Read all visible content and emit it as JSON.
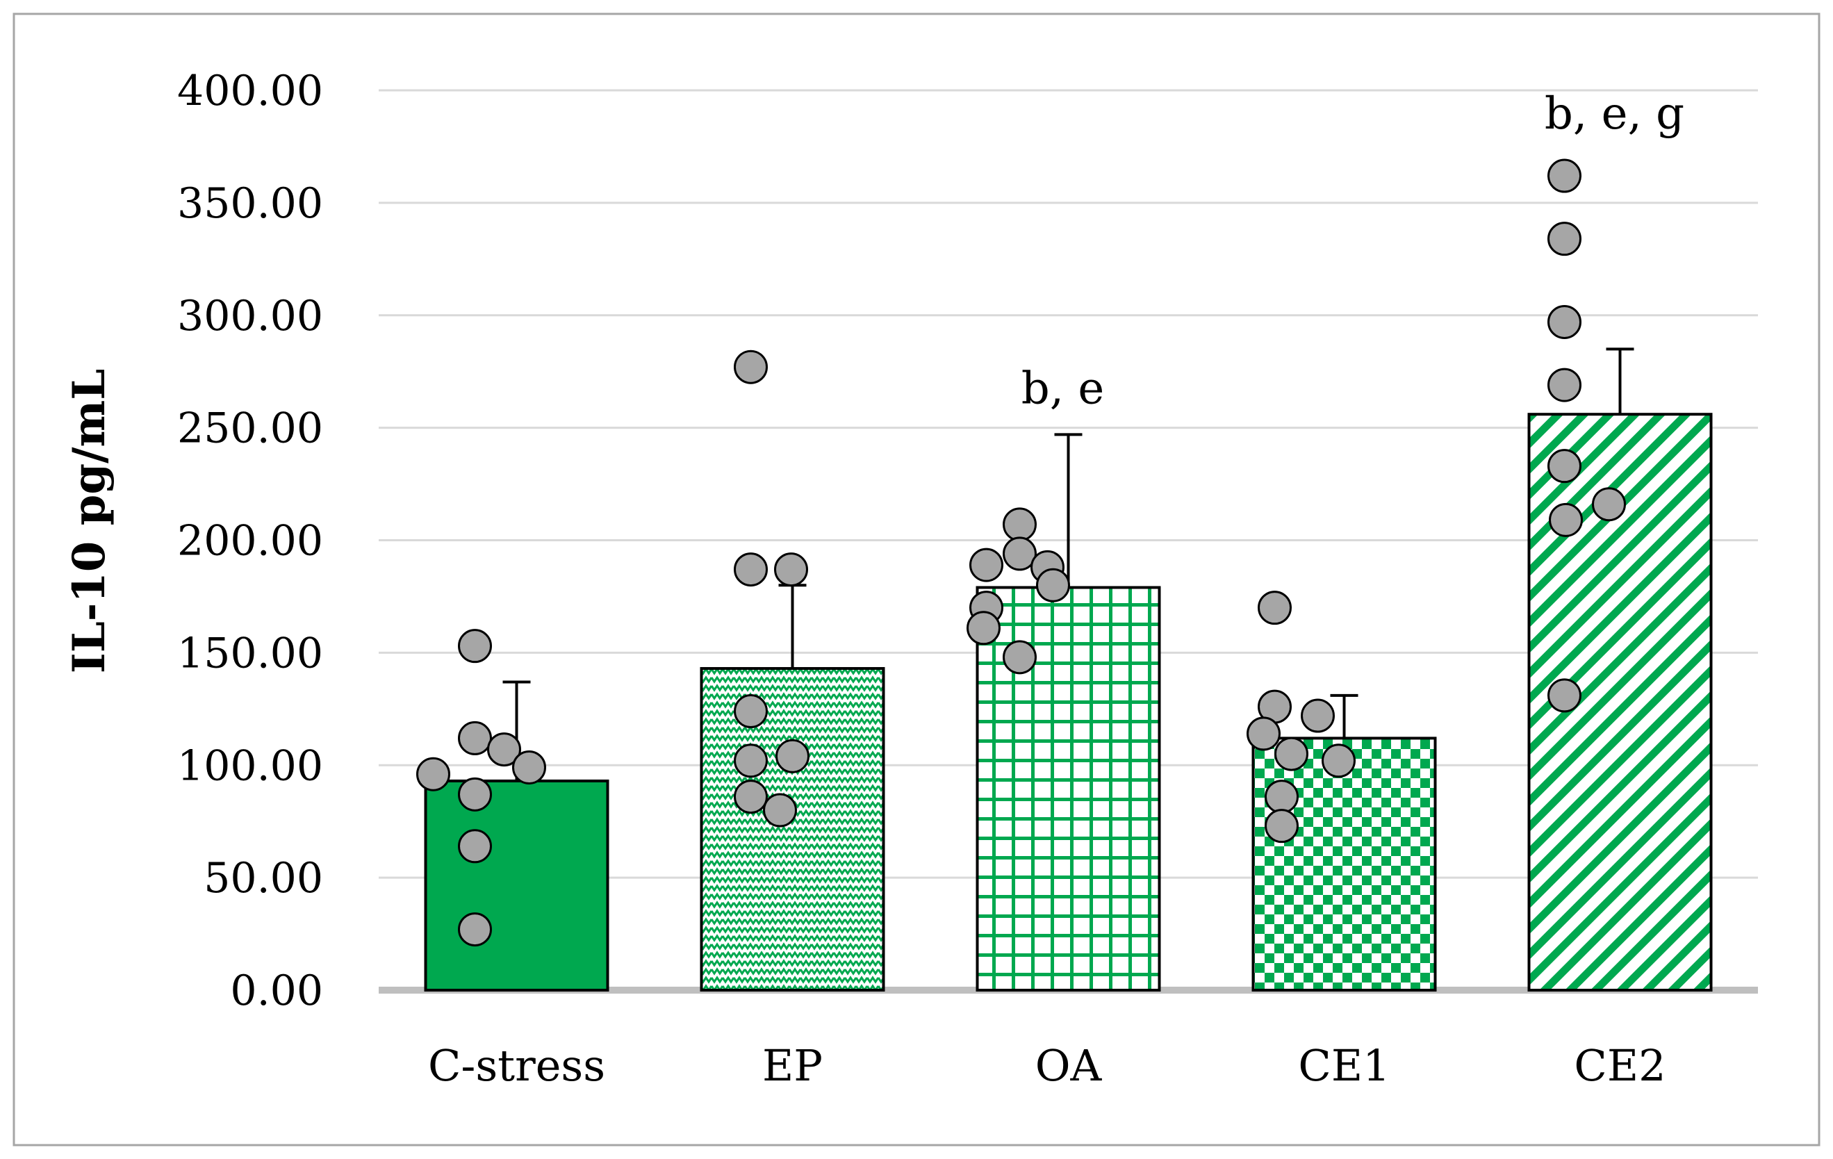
{
  "chart_data": {
    "type": "bar",
    "title": "",
    "xlabel": "",
    "ylabel": "IL-10 pg/mL",
    "ylim": [
      0,
      400
    ],
    "yticks": [
      "0.00",
      "50.00",
      "100.00",
      "150.00",
      "200.00",
      "250.00",
      "300.00",
      "350.00",
      "400.00"
    ],
    "grid": true,
    "categories": [
      "C-stress",
      "EP",
      "OA",
      "CE1",
      "CE2"
    ],
    "series": [
      {
        "name": "IL-10",
        "values": [
          93,
          143,
          179,
          112,
          256
        ],
        "error_upper": [
          137,
          180,
          247,
          131,
          285
        ],
        "patterns": [
          "solid",
          "zigzag",
          "grid",
          "checker",
          "diagonal"
        ],
        "color": "#00a84f",
        "annotations": [
          "",
          "",
          "b, e",
          "",
          "b, e, g"
        ]
      }
    ],
    "points": [
      [
        153,
        112,
        107,
        96,
        99,
        87,
        64,
        27
      ],
      [
        277,
        187,
        187,
        124,
        102,
        104,
        86,
        80
      ],
      [
        207,
        194,
        188,
        189,
        180,
        170,
        161,
        148
      ],
      [
        170,
        126,
        122,
        114,
        105,
        102,
        86,
        73
      ],
      [
        362,
        334,
        297,
        269,
        233,
        209,
        216,
        131
      ]
    ],
    "point_color": "#a6a6a6"
  }
}
